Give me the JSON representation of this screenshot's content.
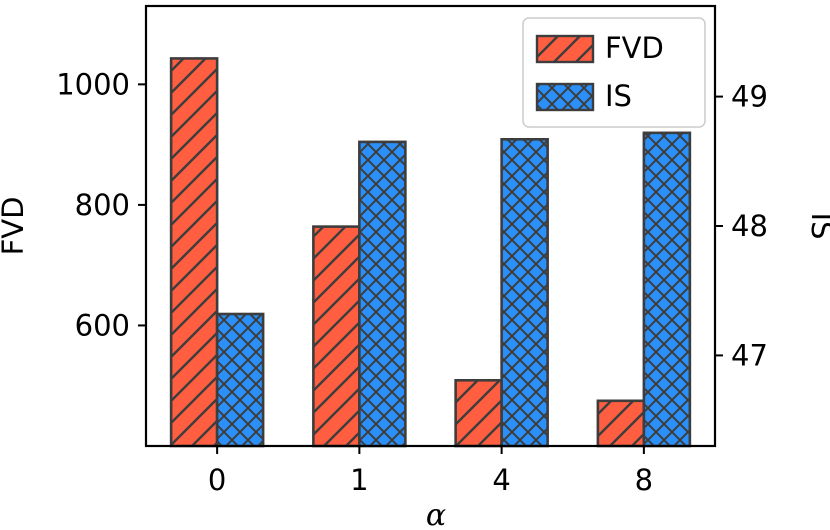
{
  "chart_data": {
    "type": "bar",
    "title": "",
    "xlabel": "α",
    "categories": [
      "0",
      "1",
      "4",
      "8"
    ],
    "series": [
      {
        "name": "FVD",
        "axis": "left",
        "values": [
          1043,
          764,
          509,
          475
        ],
        "color": "#ff5e41",
        "hatch": "diagonal"
      },
      {
        "name": "IS",
        "axis": "right",
        "values": [
          47.32,
          48.65,
          48.67,
          48.72
        ],
        "color": "#2a8ff7",
        "hatch": "crosshatch"
      }
    ],
    "y_left": {
      "label": "FVD",
      "lim": [
        400,
        1130
      ],
      "ticks": [
        600,
        800,
        1000
      ],
      "tick_labels": [
        "600",
        "800",
        "1000"
      ]
    },
    "y_right": {
      "label": "IS",
      "lim": [
        46.3,
        49.7
      ],
      "ticks": [
        47,
        48,
        49
      ],
      "tick_labels": [
        "47",
        "48",
        "49"
      ]
    },
    "legend": {
      "position": "top-right",
      "entries": [
        "FVD",
        "IS"
      ]
    },
    "grid": false
  }
}
